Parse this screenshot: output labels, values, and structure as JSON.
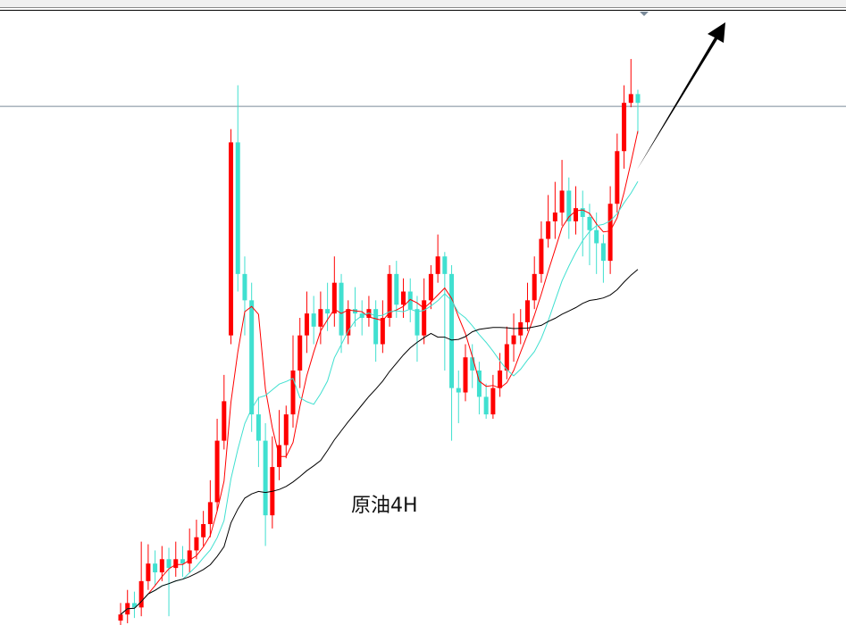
{
  "chart_data": {
    "type": "candlestick",
    "title": "原油4H",
    "up_color": "#ff0000",
    "down_color": "#40e0d0",
    "ma_colors": [
      "#ff0000",
      "#40e0d0",
      "#000000"
    ],
    "ma_periods": [
      5,
      10,
      30
    ],
    "price_line": 591,
    "ylim": [
      0,
      700
    ],
    "open": [
      5,
      12,
      25,
      20,
      50,
      70,
      60,
      75,
      65,
      75,
      70,
      85,
      100,
      115,
      140,
      210,
      330,
      550,
      400,
      370,
      240,
      210,
      125,
      180,
      205,
      240,
      290,
      330,
      355,
      340,
      360,
      355,
      390,
      330,
      360,
      355,
      350,
      360,
      320,
      350,
      400,
      365,
      380,
      360,
      330,
      370,
      400,
      420,
      400,
      270,
      265,
      305,
      290,
      260,
      240,
      270,
      290,
      320,
      330,
      345,
      370,
      400,
      440,
      460,
      470,
      495,
      460,
      475,
      465,
      450,
      435,
      415,
      480,
      540,
      595,
      605
    ],
    "high": [
      25,
      40,
      38,
      95,
      92,
      85,
      90,
      88,
      95,
      90,
      110,
      120,
      130,
      165,
      235,
      285,
      565,
      615,
      420,
      390,
      260,
      230,
      215,
      245,
      250,
      330,
      350,
      380,
      375,
      380,
      390,
      420,
      400,
      370,
      385,
      370,
      375,
      370,
      370,
      410,
      415,
      395,
      395,
      375,
      395,
      410,
      445,
      425,
      410,
      290,
      320,
      320,
      300,
      275,
      285,
      310,
      340,
      355,
      360,
      390,
      420,
      460,
      490,
      505,
      530,
      510,
      500,
      495,
      480,
      470,
      445,
      500,
      560,
      615,
      645,
      610
    ],
    "low": [
      -5,
      2,
      8,
      10,
      40,
      45,
      50,
      10,
      55,
      55,
      60,
      75,
      90,
      100,
      130,
      200,
      320,
      380,
      330,
      220,
      180,
      90,
      110,
      165,
      190,
      225,
      270,
      310,
      320,
      320,
      335,
      340,
      310,
      320,
      340,
      330,
      340,
      300,
      310,
      340,
      350,
      350,
      345,
      300,
      320,
      360,
      390,
      290,
      210,
      230,
      255,
      270,
      240,
      235,
      235,
      260,
      280,
      300,
      320,
      335,
      360,
      390,
      430,
      440,
      455,
      440,
      445,
      420,
      410,
      400,
      390,
      400,
      470,
      520,
      590,
      560
    ],
    "close": [
      12,
      25,
      20,
      50,
      70,
      60,
      75,
      65,
      75,
      70,
      85,
      100,
      115,
      140,
      210,
      255,
      550,
      400,
      370,
      240,
      210,
      125,
      180,
      205,
      240,
      290,
      330,
      355,
      340,
      360,
      355,
      390,
      330,
      360,
      355,
      350,
      360,
      320,
      350,
      400,
      365,
      380,
      360,
      330,
      370,
      400,
      420,
      400,
      270,
      265,
      305,
      290,
      260,
      240,
      270,
      290,
      320,
      330,
      345,
      370,
      400,
      440,
      460,
      470,
      495,
      460,
      475,
      465,
      450,
      435,
      415,
      480,
      540,
      595,
      605,
      595
    ],
    "annotation": {
      "type": "arrow",
      "direction": "up-right",
      "color": "#000000"
    },
    "marker_icon": "triangle-down-icon"
  }
}
